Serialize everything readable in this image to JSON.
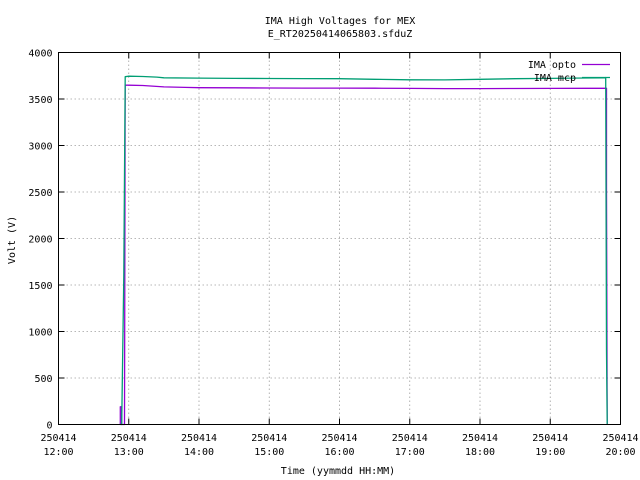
{
  "chart_data": {
    "type": "line",
    "title": "IMA High Voltages for MEX",
    "subtitle": "E_RT20250414065803.sfduZ",
    "xlabel": "Time (yymmdd HH:MM)",
    "ylabel": "Volt (V)",
    "x_unit": "hours of day 2025-04-14",
    "xlim": [
      12.0,
      20.0
    ],
    "ylim": [
      0,
      4000
    ],
    "x_ticks": [
      {
        "value": 12,
        "date": "250414",
        "time": "12:00"
      },
      {
        "value": 13,
        "date": "250414",
        "time": "13:00"
      },
      {
        "value": 14,
        "date": "250414",
        "time": "14:00"
      },
      {
        "value": 15,
        "date": "250414",
        "time": "15:00"
      },
      {
        "value": 16,
        "date": "250414",
        "time": "16:00"
      },
      {
        "value": 17,
        "date": "250414",
        "time": "17:00"
      },
      {
        "value": 18,
        "date": "250414",
        "time": "18:00"
      },
      {
        "value": 19,
        "date": "250414",
        "time": "19:00"
      },
      {
        "value": 20,
        "date": "250414",
        "time": "20:00"
      }
    ],
    "y_ticks": [
      0,
      500,
      1000,
      1500,
      2000,
      2500,
      3000,
      3500,
      4000
    ],
    "grid": true,
    "legend_position": "top-right",
    "series": [
      {
        "name": "IMA opto",
        "color": "#9400d3",
        "x": [
          12.88,
          12.88,
          12.9,
          12.9,
          12.94,
          12.95,
          13.0,
          13.2,
          13.5,
          13.8,
          14.0,
          14.5,
          15.0,
          15.5,
          16.0,
          16.5,
          17.0,
          17.5,
          18.0,
          18.5,
          19.0,
          19.5,
          19.8,
          19.8,
          19.81
        ],
        "values": [
          0,
          190,
          190,
          0,
          0,
          3650,
          3648,
          3645,
          3630,
          3625,
          3622,
          3620,
          3618,
          3617,
          3617,
          3616,
          3614,
          3612,
          3612,
          3613,
          3614,
          3615,
          3615,
          2550,
          0
        ]
      },
      {
        "name": "IMA mcp",
        "color": "#009e73",
        "x": [
          12.88,
          12.9,
          12.93,
          12.95,
          13.0,
          13.2,
          13.4,
          13.5,
          14.0,
          14.5,
          15.0,
          15.5,
          16.0,
          16.5,
          17.0,
          17.5,
          18.0,
          18.5,
          19.0,
          19.5,
          19.78,
          19.79,
          19.8,
          19.81
        ],
        "values": [
          0,
          0,
          1600,
          3740,
          3745,
          3742,
          3735,
          3728,
          3725,
          3722,
          3720,
          3719,
          3718,
          3712,
          3706,
          3705,
          3712,
          3718,
          3722,
          3726,
          3728,
          3730,
          800,
          0
        ]
      }
    ]
  }
}
